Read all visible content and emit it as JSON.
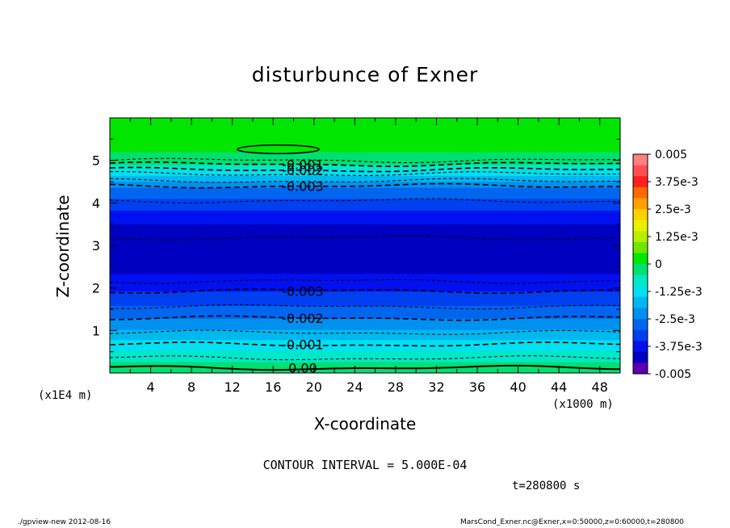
{
  "chart_data": {
    "type": "heatmap",
    "title": "disturbunce of Exner",
    "xlabel": "X-coordinate",
    "ylabel": "Z-coordinate",
    "x_unit": "(x1000 m)",
    "y_unit": "(x1E4 m)",
    "xlim": [
      0,
      50
    ],
    "ylim": [
      0,
      6
    ],
    "x_ticks": [
      4,
      8,
      12,
      16,
      20,
      24,
      28,
      32,
      36,
      40,
      44,
      48
    ],
    "y_ticks": [
      1,
      2,
      3,
      4,
      5
    ],
    "colorbar": {
      "labels": [
        "0.005",
        "3.75e-3",
        "2.5e-3",
        "1.25e-3",
        "0",
        "-1.25e-3",
        "-2.5e-3",
        "-3.75e-3",
        "-0.005"
      ],
      "min": -0.005,
      "max": 0.005,
      "colors": [
        "#ff8080",
        "#ff5050",
        "#ff2020",
        "#ff6a00",
        "#ffa000",
        "#ffd000",
        "#e8f000",
        "#b4f000",
        "#6ee600",
        "#00e600",
        "#00e070",
        "#00e8c8",
        "#00e0f0",
        "#00b8f0",
        "#0090f0",
        "#0066f0",
        "#0040f0",
        "#0010f0",
        "#0000c0",
        "#5a00b0"
      ]
    },
    "z_profile": [
      {
        "z": 0.0,
        "value": 0.0
      },
      {
        "z": 0.3,
        "value": -0.0006
      },
      {
        "z": 0.7,
        "value": -0.0013
      },
      {
        "z": 1.1,
        "value": -0.0022
      },
      {
        "z": 1.5,
        "value": -0.0029
      },
      {
        "z": 2.0,
        "value": -0.0036
      },
      {
        "z": 2.5,
        "value": -0.0042
      },
      {
        "z": 3.0,
        "value": -0.0044
      },
      {
        "z": 3.5,
        "value": -0.004
      },
      {
        "z": 4.0,
        "value": -0.0032
      },
      {
        "z": 4.4,
        "value": -0.0024
      },
      {
        "z": 4.7,
        "value": -0.0013
      },
      {
        "z": 5.0,
        "value": -0.0001
      },
      {
        "z": 5.3,
        "value": 5e-05
      },
      {
        "z": 6.0,
        "value": 0.0
      }
    ],
    "contours": [
      {
        "z": 5.0,
        "label": "",
        "style": "dashed"
      },
      {
        "z": 4.91,
        "label": "-0.001",
        "style": "dashed"
      },
      {
        "z": 4.78,
        "label": "-0.002",
        "style": "dashed"
      },
      {
        "z": 4.68,
        "label": "",
        "style": "dashed"
      },
      {
        "z": 4.52,
        "label": "",
        "style": "dashed"
      },
      {
        "z": 4.4,
        "label": "-0.003",
        "style": "dashed"
      },
      {
        "z": 4.05,
        "label": "",
        "style": "dashed"
      },
      {
        "z": 3.18,
        "label": "",
        "style": "dashed"
      },
      {
        "z": 2.16,
        "label": "",
        "style": "dashed"
      },
      {
        "z": 1.93,
        "label": "-0.003",
        "style": "dashed"
      },
      {
        "z": 1.56,
        "label": "",
        "style": "dashed"
      },
      {
        "z": 1.29,
        "label": "-0.002",
        "style": "dashed"
      },
      {
        "z": 0.95,
        "label": "",
        "style": "dashed"
      },
      {
        "z": 0.67,
        "label": "-0.001",
        "style": "dashed"
      },
      {
        "z": 0.35,
        "label": "",
        "style": "dashed"
      },
      {
        "z": 0.12,
        "label": "0.00",
        "style": "solid"
      }
    ],
    "positive_contour": {
      "x_center": 16.5,
      "z_center": 5.26,
      "x_halfwidth": 4.0,
      "z_halfheight": 0.1
    }
  },
  "contour_interval": "CONTOUR INTERVAL = 5.000E-04",
  "time_label": "t=280800 s",
  "footer_left": "./gpview-new   2012-08-16",
  "footer_right": "MarsCond_Exner.nc@Exner,x=0:50000,z=0:60000,t=280800"
}
